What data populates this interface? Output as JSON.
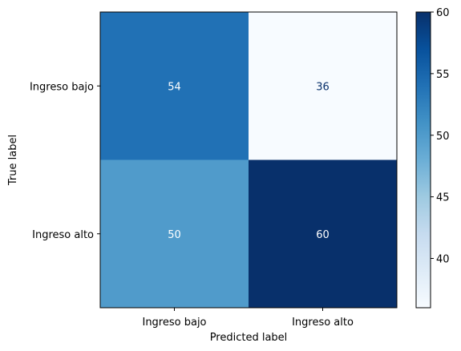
{
  "chart_data": {
    "type": "heatmap",
    "title": "",
    "xlabel": "Predicted label",
    "ylabel": "True label",
    "x_categories": [
      "Ingreso bajo",
      "Ingreso alto"
    ],
    "y_categories": [
      "Ingreso bajo",
      "Ingreso alto"
    ],
    "values": [
      [
        54,
        36
      ],
      [
        50,
        60
      ]
    ],
    "colormap": "Blues",
    "colorbar": {
      "min": 36,
      "max": 60,
      "ticks": [
        40,
        45,
        50,
        55,
        60
      ]
    },
    "grid": false
  }
}
